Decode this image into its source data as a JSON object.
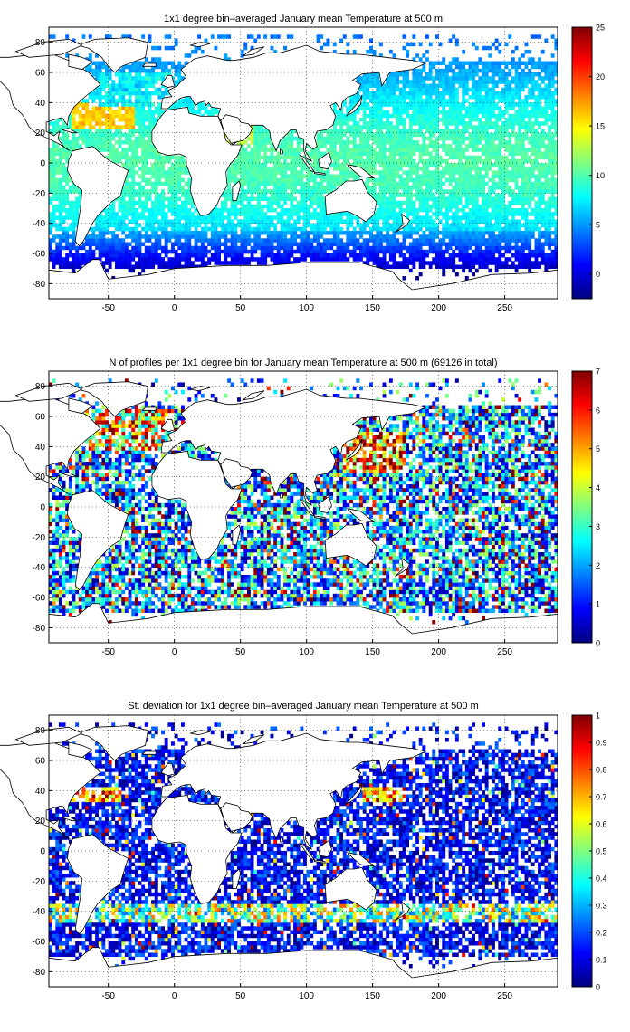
{
  "chart_data": [
    {
      "type": "heatmap",
      "title": "1x1 degree bin–averaged January mean Temperature at 500 m",
      "xlim": [
        -95,
        290
      ],
      "ylim": [
        -90,
        90
      ],
      "xticks": [
        -50,
        0,
        50,
        100,
        150,
        200,
        250
      ],
      "yticks": [
        -80,
        -60,
        -40,
        -20,
        0,
        20,
        40,
        60,
        80
      ],
      "colorbar": {
        "ticks": [
          0,
          5,
          10,
          15,
          20,
          25
        ],
        "lim": [
          -2.5,
          25
        ],
        "colormap": "jet"
      },
      "grid": true,
      "field": "temperature",
      "density": 0.85
    },
    {
      "type": "heatmap",
      "title": "N of profiles per 1x1 degree bin for January mean Temperature at 500 m (69126 in total)",
      "xlim": [
        -95,
        290
      ],
      "ylim": [
        -90,
        90
      ],
      "xticks": [
        -50,
        0,
        50,
        100,
        150,
        200,
        250
      ],
      "yticks": [
        -80,
        -60,
        -40,
        -20,
        0,
        20,
        40,
        60,
        80
      ],
      "colorbar": {
        "ticks": [
          0,
          1,
          2,
          3,
          4,
          5,
          6,
          7
        ],
        "lim": [
          0,
          7
        ],
        "colormap": "jet"
      },
      "grid": true,
      "field": "count",
      "total_profiles": 69126,
      "density": 0.72
    },
    {
      "type": "heatmap",
      "title": "St. deviation for 1x1 degree bin–averaged January mean Temperature at 500 m",
      "xlim": [
        -95,
        290
      ],
      "ylim": [
        -90,
        90
      ],
      "xticks": [
        -50,
        0,
        50,
        100,
        150,
        200,
        250
      ],
      "yticks": [
        -80,
        -60,
        -40,
        -20,
        0,
        20,
        40,
        60,
        80
      ],
      "colorbar": {
        "ticks": [
          0,
          0.1,
          0.2,
          0.3,
          0.4,
          0.5,
          0.6,
          0.7,
          0.8,
          0.9,
          1
        ],
        "lim": [
          0,
          1
        ],
        "colormap": "jet"
      },
      "grid": true,
      "field": "stdev",
      "density": 0.72
    }
  ],
  "land": [
    {
      "name": "North America",
      "points": [
        [
          -168,
          66
        ],
        [
          -160,
          71
        ],
        [
          -140,
          70
        ],
        [
          -125,
          70
        ],
        [
          -95,
          73
        ],
        [
          -80,
          68
        ],
        [
          -65,
          60
        ],
        [
          -56,
          52
        ],
        [
          -66,
          45
        ],
        [
          -70,
          42
        ],
        [
          -76,
          37
        ],
        [
          -80,
          31
        ],
        [
          -81,
          25
        ],
        [
          -85,
          30
        ],
        [
          -90,
          29
        ],
        [
          -97,
          27
        ],
        [
          -97,
          21
        ],
        [
          -91,
          18
        ],
        [
          -87,
          21
        ],
        [
          -88,
          16
        ],
        [
          -83,
          10
        ],
        [
          -79,
          8
        ],
        [
          -86,
          12
        ],
        [
          -95,
          16
        ],
        [
          -105,
          20
        ],
        [
          -110,
          24
        ],
        [
          -115,
          32
        ],
        [
          -122,
          38
        ],
        [
          -125,
          48
        ],
        [
          -135,
          57
        ],
        [
          -150,
          60
        ],
        [
          -160,
          58
        ],
        [
          -165,
          62
        ]
      ]
    },
    {
      "name": "Greenland",
      "points": [
        [
          -73,
          78
        ],
        [
          -60,
          82
        ],
        [
          -35,
          83
        ],
        [
          -20,
          80
        ],
        [
          -22,
          70
        ],
        [
          -40,
          64
        ],
        [
          -45,
          60
        ],
        [
          -50,
          64
        ],
        [
          -55,
          70
        ],
        [
          -65,
          76
        ]
      ]
    },
    {
      "name": "Canadian Archipelago",
      "points": [
        [
          -120,
          74
        ],
        [
          -100,
          80
        ],
        [
          -80,
          82
        ],
        [
          -70,
          78
        ],
        [
          -85,
          72
        ],
        [
          -110,
          70
        ]
      ]
    },
    {
      "name": "Baffin Island",
      "points": [
        [
          -80,
          72
        ],
        [
          -70,
          70
        ],
        [
          -62,
          67
        ],
        [
          -70,
          62
        ],
        [
          -80,
          64
        ]
      ]
    },
    {
      "name": "South America",
      "points": [
        [
          -77,
          8
        ],
        [
          -62,
          11
        ],
        [
          -50,
          2
        ],
        [
          -35,
          -5
        ],
        [
          -38,
          -13
        ],
        [
          -41,
          -22
        ],
        [
          -48,
          -26
        ],
        [
          -58,
          -35
        ],
        [
          -62,
          -40
        ],
        [
          -66,
          -47
        ],
        [
          -69,
          -52
        ],
        [
          -72,
          -55
        ],
        [
          -75,
          -52
        ],
        [
          -73,
          -40
        ],
        [
          -71,
          -30
        ],
        [
          -70,
          -18
        ],
        [
          -76,
          -14
        ],
        [
          -81,
          -5
        ],
        [
          -80,
          2
        ]
      ]
    },
    {
      "name": "Eurasia",
      "points": [
        [
          -10,
          36
        ],
        [
          -9,
          43
        ],
        [
          -2,
          44
        ],
        [
          -5,
          48
        ],
        [
          2,
          51
        ],
        [
          5,
          54
        ],
        [
          9,
          57
        ],
        [
          5,
          62
        ],
        [
          15,
          69
        ],
        [
          25,
          71
        ],
        [
          40,
          68
        ],
        [
          45,
          68
        ],
        [
          60,
          70
        ],
        [
          70,
          73
        ],
        [
          80,
          73
        ],
        [
          100,
          78
        ],
        [
          110,
          74
        ],
        [
          130,
          72
        ],
        [
          140,
          72
        ],
        [
          160,
          70
        ],
        [
          180,
          68
        ],
        [
          190,
          66
        ],
        [
          180,
          62
        ],
        [
          163,
          60
        ],
        [
          157,
          51
        ],
        [
          155,
          60
        ],
        [
          142,
          59
        ],
        [
          135,
          55
        ],
        [
          141,
          52
        ],
        [
          138,
          46
        ],
        [
          130,
          43
        ],
        [
          127,
          40
        ],
        [
          126,
          35
        ],
        [
          122,
          40
        ],
        [
          118,
          38
        ],
        [
          122,
          31
        ],
        [
          120,
          25
        ],
        [
          115,
          22
        ],
        [
          108,
          21
        ],
        [
          106,
          17
        ],
        [
          108,
          11
        ],
        [
          105,
          9
        ],
        [
          100,
          13
        ],
        [
          99,
          8
        ],
        [
          104,
          1
        ],
        [
          100,
          3
        ],
        [
          98,
          8
        ],
        [
          98,
          16
        ],
        [
          94,
          17
        ],
        [
          92,
          22
        ],
        [
          88,
          22
        ],
        [
          86,
          20
        ],
        [
          80,
          15
        ],
        [
          77,
          8
        ],
        [
          73,
          16
        ],
        [
          72,
          21
        ],
        [
          67,
          25
        ],
        [
          58,
          25
        ],
        [
          57,
          22
        ],
        [
          52,
          17
        ],
        [
          44,
          12
        ],
        [
          42,
          15
        ],
        [
          40,
          21
        ],
        [
          35,
          28
        ],
        [
          33,
          31
        ],
        [
          35,
          36
        ],
        [
          28,
          37
        ],
        [
          26,
          40
        ],
        [
          24,
          38
        ],
        [
          23,
          41
        ],
        [
          19,
          40
        ],
        [
          16,
          38
        ],
        [
          12,
          44
        ],
        [
          9,
          44
        ],
        [
          5,
          43
        ],
        [
          3,
          42
        ],
        [
          0,
          40
        ],
        [
          -5,
          36
        ]
      ]
    },
    {
      "name": "Africa",
      "points": [
        [
          -17,
          21
        ],
        [
          -13,
          27
        ],
        [
          -10,
          31
        ],
        [
          -6,
          35
        ],
        [
          10,
          37
        ],
        [
          11,
          33
        ],
        [
          20,
          31
        ],
        [
          30,
          31
        ],
        [
          33,
          31
        ],
        [
          37,
          22
        ],
        [
          39,
          15
        ],
        [
          43,
          12
        ],
        [
          51,
          12
        ],
        [
          48,
          5
        ],
        [
          42,
          -1
        ],
        [
          39,
          -6
        ],
        [
          40,
          -15
        ],
        [
          35,
          -22
        ],
        [
          32,
          -28
        ],
        [
          26,
          -34
        ],
        [
          20,
          -35
        ],
        [
          18,
          -32
        ],
        [
          15,
          -27
        ],
        [
          12,
          -18
        ],
        [
          13,
          -10
        ],
        [
          9,
          -1
        ],
        [
          9,
          4
        ],
        [
          4,
          6
        ],
        [
          -5,
          5
        ],
        [
          -12,
          7
        ],
        [
          -17,
          14
        ]
      ]
    },
    {
      "name": "Arabia",
      "points": [
        [
          35,
          28
        ],
        [
          38,
          20
        ],
        [
          43,
          13
        ],
        [
          52,
          15
        ],
        [
          57,
          19
        ],
        [
          59,
          23
        ],
        [
          56,
          26
        ],
        [
          50,
          27
        ],
        [
          48,
          30
        ],
        [
          39,
          32
        ]
      ]
    },
    {
      "name": "Australia",
      "points": [
        [
          114,
          -22
        ],
        [
          122,
          -18
        ],
        [
          130,
          -12
        ],
        [
          136,
          -12
        ],
        [
          142,
          -11
        ],
        [
          146,
          -19
        ],
        [
          153,
          -26
        ],
        [
          151,
          -34
        ],
        [
          145,
          -39
        ],
        [
          138,
          -35
        ],
        [
          131,
          -32
        ],
        [
          115,
          -34
        ]
      ]
    },
    {
      "name": "Antarctica",
      "points": [
        [
          -95,
          -71
        ],
        [
          -75,
          -73
        ],
        [
          -62,
          -64
        ],
        [
          -57,
          -64
        ],
        [
          -50,
          -77
        ],
        [
          -20,
          -74
        ],
        [
          0,
          -70
        ],
        [
          40,
          -68
        ],
        [
          70,
          -68
        ],
        [
          100,
          -66
        ],
        [
          140,
          -66
        ],
        [
          165,
          -72
        ],
        [
          170,
          -77
        ],
        [
          180,
          -84
        ],
        [
          210,
          -80
        ],
        [
          240,
          -74
        ],
        [
          270,
          -73
        ],
        [
          290,
          -71
        ],
        [
          290,
          -90
        ],
        [
          -95,
          -90
        ]
      ]
    },
    {
      "name": "Madagascar",
      "points": [
        [
          44,
          -25
        ],
        [
          47,
          -25
        ],
        [
          50,
          -15
        ],
        [
          49,
          -12
        ],
        [
          44,
          -16
        ]
      ]
    },
    {
      "name": "Japan",
      "points": [
        [
          130,
          31
        ],
        [
          136,
          34
        ],
        [
          141,
          39
        ],
        [
          142,
          45
        ],
        [
          140,
          41
        ],
        [
          133,
          34
        ]
      ]
    },
    {
      "name": "Borneo",
      "points": [
        [
          109,
          2
        ],
        [
          117,
          7
        ],
        [
          119,
          1
        ],
        [
          116,
          -4
        ],
        [
          110,
          -3
        ]
      ]
    },
    {
      "name": "Sumatra",
      "points": [
        [
          95,
          5
        ],
        [
          98,
          4
        ],
        [
          106,
          -6
        ],
        [
          103,
          -5
        ]
      ]
    },
    {
      "name": "New Guinea",
      "points": [
        [
          131,
          -1
        ],
        [
          141,
          -3
        ],
        [
          151,
          -10
        ],
        [
          141,
          -9
        ],
        [
          134,
          -4
        ]
      ]
    },
    {
      "name": "British Isles",
      "points": [
        [
          -10,
          52
        ],
        [
          -5,
          58
        ],
        [
          -2,
          58
        ],
        [
          0,
          51
        ],
        [
          -5,
          50
        ]
      ]
    },
    {
      "name": "Iceland",
      "points": [
        [
          -24,
          64
        ],
        [
          -22,
          66
        ],
        [
          -14,
          66
        ],
        [
          -14,
          64
        ]
      ]
    },
    {
      "name": "New Zealand",
      "points": [
        [
          172,
          -34
        ],
        [
          178,
          -38
        ],
        [
          176,
          -41
        ],
        [
          171,
          -44
        ],
        [
          167,
          -46
        ],
        [
          173,
          -41
        ]
      ]
    },
    {
      "name": "Svalbard",
      "points": [
        [
          12,
          78
        ],
        [
          20,
          80
        ],
        [
          27,
          79
        ],
        [
          18,
          77
        ]
      ]
    },
    {
      "name": "Novaya Zemlya",
      "points": [
        [
          52,
          71
        ],
        [
          58,
          75
        ],
        [
          68,
          77
        ],
        [
          60,
          72
        ]
      ]
    },
    {
      "name": "Sri Lanka",
      "points": [
        [
          80,
          6
        ],
        [
          80,
          9
        ],
        [
          82,
          8
        ],
        [
          82,
          6
        ]
      ]
    },
    {
      "name": "Cuba",
      "points": [
        [
          -85,
          22
        ],
        [
          -80,
          23
        ],
        [
          -74,
          20
        ],
        [
          -77,
          20
        ]
      ]
    },
    {
      "name": "Java",
      "points": [
        [
          106,
          -6
        ],
        [
          114,
          -7
        ],
        [
          114,
          -8
        ],
        [
          106,
          -7
        ]
      ]
    }
  ]
}
